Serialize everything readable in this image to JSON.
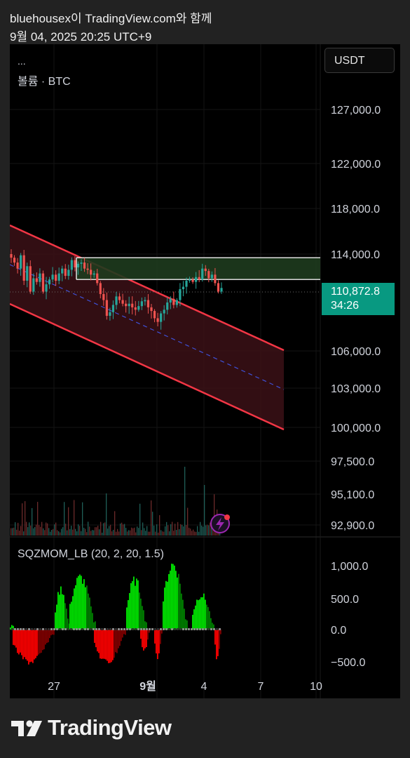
{
  "header": {
    "title": "bluehousex이 TradingView.com와 함께",
    "timestamp": "9월 04, 2025 20:25 UTC+9"
  },
  "toolbar": {
    "currency_button": "USDT",
    "menu_dots": "..."
  },
  "volume_label": "볼륨 · BTC",
  "indicator_label": "SQZMOM_LB (20, 2, 20, 1.5)",
  "current_price": {
    "price": "110,872.8",
    "countdown": "34:26",
    "color": "#089981"
  },
  "footer": {
    "brand": "TradingView"
  },
  "colors": {
    "up": "#26a69a",
    "down": "#ef5350",
    "channel_line": "#f23645",
    "channel_fill": "#3b1116",
    "zone_fill": "#1e3b1e",
    "zone_border": "#f0f0f0",
    "mom_strong_up": "#00e600",
    "mom_weak_up": "#008000",
    "mom_strong_down": "#ff0000",
    "mom_weak_down": "#800000",
    "midline": "#3f51d8"
  },
  "chart_data": {
    "type": "candlestick",
    "symbol": "BTC/USDT",
    "price_axis_ticks": [
      "127,000.0",
      "122,000.0",
      "118,000.0",
      "114,000.0",
      "106,000.0",
      "103,000.0",
      "100,000.0",
      "97,500.0",
      "95,100.0",
      "92,900.0"
    ],
    "indicator_axis_ticks": [
      "1,000.0",
      "500.0",
      "0.0",
      "−500.0"
    ],
    "x_axis_ticks": [
      "27",
      "9월",
      "4",
      "7",
      "10"
    ],
    "x_axis_bold": [
      "9월"
    ],
    "current_price": 110872.8,
    "resistance_zone": [
      111900,
      113700
    ],
    "descending_channel": {
      "upper": [
        [
          "Aug 23",
          116000
        ],
        [
          "Sep 9",
          106000
        ]
      ],
      "lower": [
        [
          "Aug 23",
          111200
        ],
        [
          "Sep 9",
          99800
        ]
      ]
    },
    "price_series": [
      113700,
      113300,
      112800,
      113900,
      111800,
      113000,
      110900,
      112000,
      111700,
      112400,
      110900,
      111500,
      111900,
      112300,
      111800,
      112400,
      112800,
      112200,
      112700,
      113500,
      112900,
      113200,
      113300,
      112800,
      112700,
      112300,
      112400,
      111600,
      110700,
      110200,
      108900,
      109200,
      109800,
      110500,
      110200,
      109900,
      109700,
      109900,
      109600,
      109400,
      109700,
      110100,
      110200,
      109600,
      109300,
      108700,
      108400,
      109100,
      109400,
      110000,
      110300,
      109800,
      110200,
      111100,
      111300,
      111800,
      111900,
      111700,
      112100,
      111900,
      112800,
      112600,
      112000,
      112300,
      111600,
      110900,
      111200
    ],
    "momentum_series": [
      {
        "range": "Aug 23–Aug 26",
        "sign": "negative",
        "min": -560
      },
      {
        "range": "Aug 26–Aug 28",
        "sign": "positive",
        "max": 700
      },
      {
        "range": "Aug 28–Aug 30",
        "sign": "positive",
        "max": 900
      },
      {
        "range": "Aug 30–Sep 2",
        "sign": "negative",
        "min": -570
      },
      {
        "range": "Sep 1–Sep 3",
        "sign": "positive",
        "max": 850
      },
      {
        "range": "Sep 3–Sep 5",
        "sign": "positive",
        "max": 1130
      },
      {
        "range": "Sep 5",
        "sign": "negative",
        "min": -520
      }
    ]
  }
}
